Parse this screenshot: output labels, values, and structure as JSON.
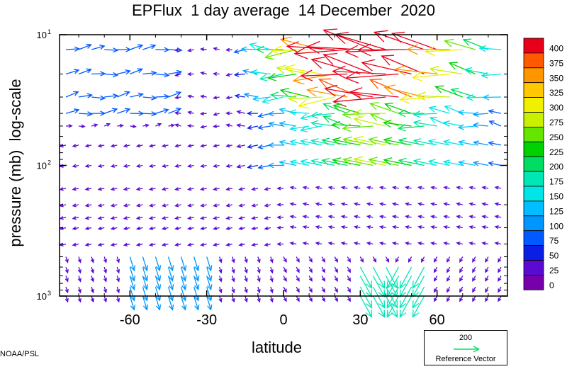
{
  "chart_data": {
    "type": "vector field",
    "title": "EPFlux  1 day average  14 December  2020",
    "xlabel": "latitude",
    "ylabel": "pressure (mb)  log-scale",
    "x_ticks": [
      -60,
      -30,
      0,
      30,
      60
    ],
    "xlim": [
      -87.5,
      87.5
    ],
    "ylim": [
      1000,
      10
    ],
    "yscale": "log",
    "y_ticks": [
      {
        "value": 10,
        "base": "10",
        "exp": "1"
      },
      {
        "value": 100,
        "base": "10",
        "exp": "2"
      },
      {
        "value": 1000,
        "base": "10",
        "exp": "3"
      }
    ],
    "colorbar": {
      "labels": [
        "400",
        "375",
        "350",
        "325",
        "300",
        "275",
        "250",
        "225",
        "200",
        "175",
        "150",
        "125",
        "100",
        "75",
        "50",
        "25",
        "0"
      ],
      "colors": [
        "#e8001a",
        "#ff5a00",
        "#ff9600",
        "#ffc800",
        "#f0f000",
        "#c8f000",
        "#64e600",
        "#00d200",
        "#00dc64",
        "#00e6b4",
        "#00e6e6",
        "#00beff",
        "#0096ff",
        "#005aff",
        "#0a1ee6",
        "#5a0ad2",
        "#7800aa"
      ]
    },
    "reference_vector": {
      "value": "200",
      "label": "Reference Vector",
      "color": "#00e664"
    },
    "credit": "NOAA/PSL"
  }
}
